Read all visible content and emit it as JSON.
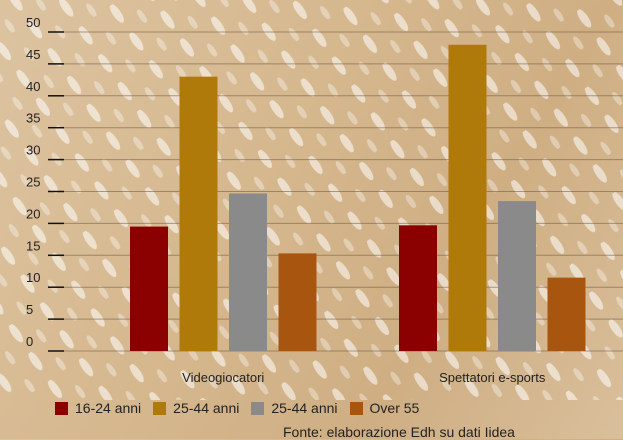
{
  "chart_data": {
    "type": "bar",
    "categories": [
      "Videogiocatori",
      "Spettatori e-sports"
    ],
    "series": [
      {
        "name": "16-24 anni",
        "color": "#8b0000",
        "values": [
          19.5,
          19.7
        ]
      },
      {
        "name": "25-44 anni",
        "color": "#b07a0a",
        "values": [
          43,
          48
        ]
      },
      {
        "name": "25-44 anni",
        "color": "#8a8a8a",
        "values": [
          24.7,
          23.5
        ]
      },
      {
        "name": "Over 55",
        "color": "#a85510",
        "values": [
          15.3,
          11.5
        ]
      }
    ],
    "ylim": [
      0,
      50
    ],
    "yticks": [
      0,
      5,
      10,
      15,
      20,
      25,
      30,
      35,
      40,
      45,
      50
    ],
    "grid": true,
    "legend_position": "bottom"
  },
  "source": "Fonte: elaborazione Edh su dati Iidea"
}
